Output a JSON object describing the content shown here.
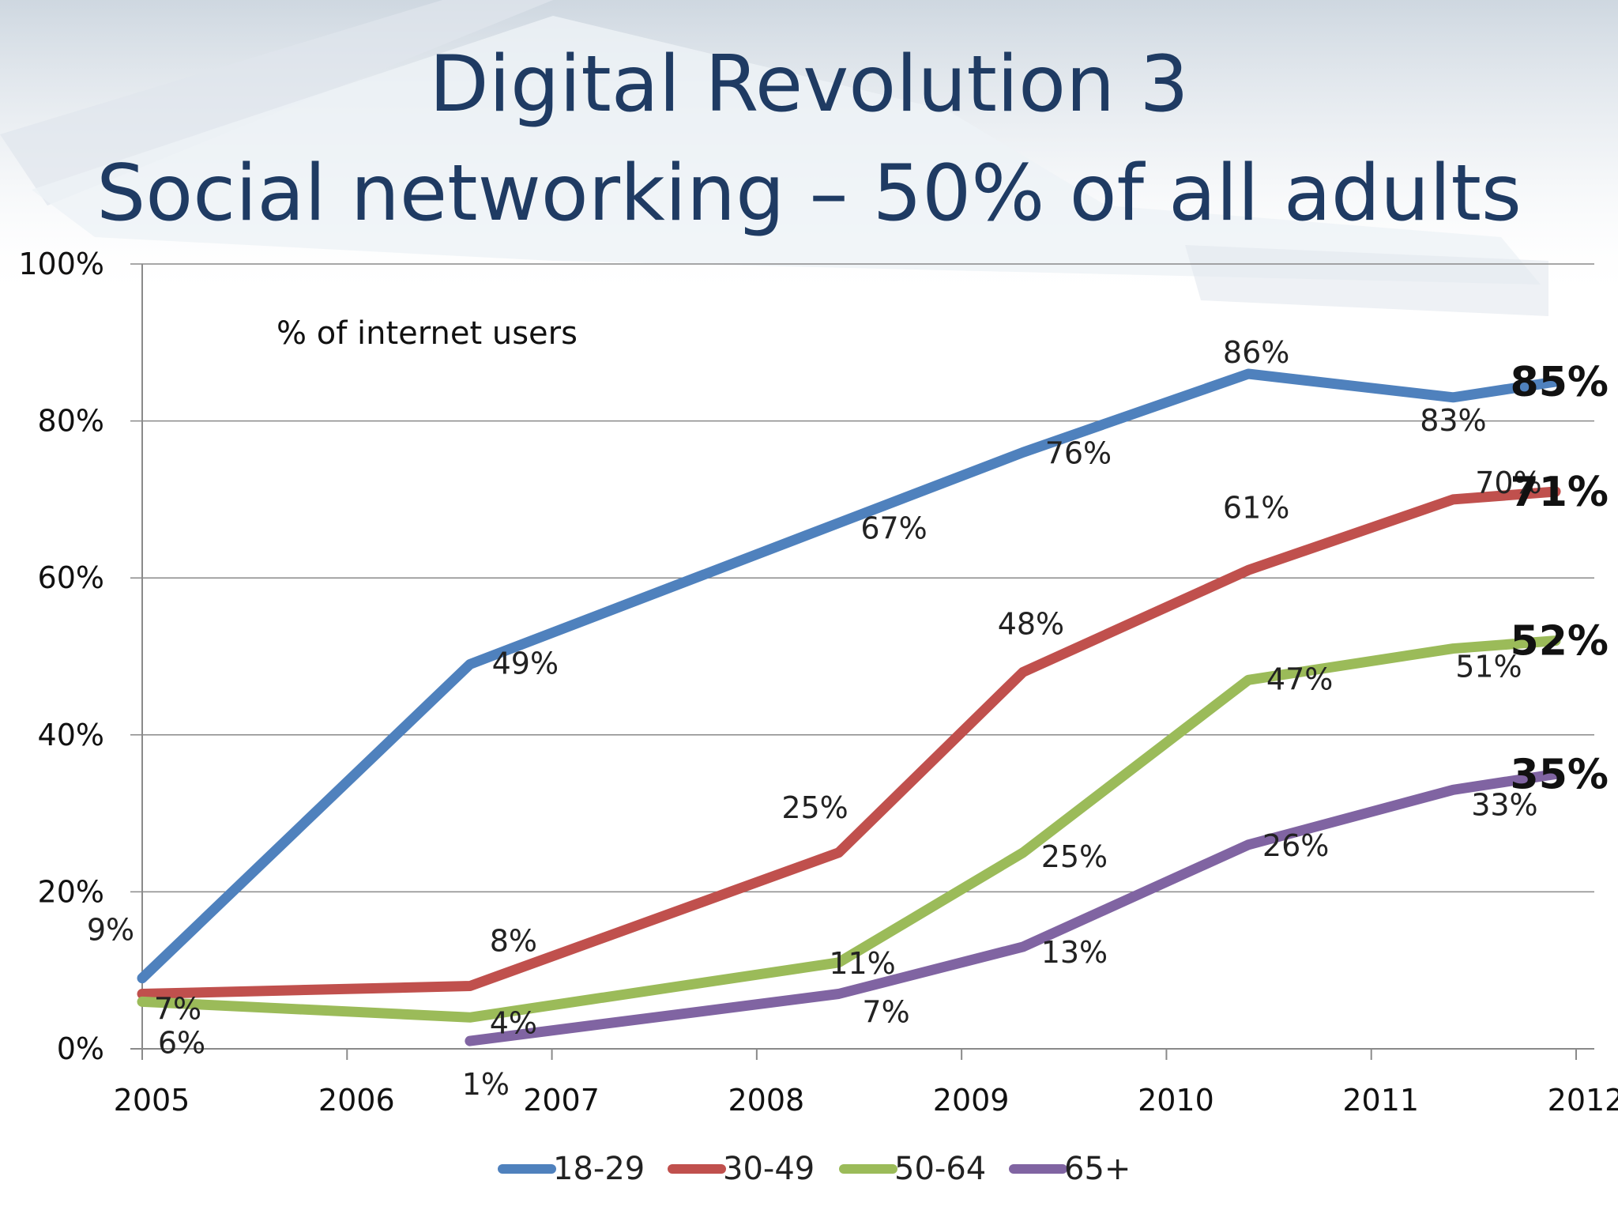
{
  "slide": {
    "title_line1": "Digital Revolution 3",
    "title_line2": "Social networking – 50% of all adults"
  },
  "chart_data": {
    "type": "line",
    "subtitle": "% of internet users",
    "x_ticks": [
      "2005",
      "2006",
      "2007",
      "2008",
      "2009",
      "2010",
      "2011",
      "2012"
    ],
    "y_ticks": [
      "0%",
      "20%",
      "40%",
      "60%",
      "80%",
      "100%"
    ],
    "xlim": [
      2005,
      2012
    ],
    "ylim": [
      0,
      100
    ],
    "grid": true,
    "legend_position": "bottom",
    "series": [
      {
        "name": "18-29",
        "color": "#4f81bd",
        "points": [
          {
            "x": 2005,
            "y": 9,
            "label": "9%"
          },
          {
            "x": 2006.6,
            "y": 49,
            "label": "49%"
          },
          {
            "x": 2008.4,
            "y": 67,
            "label": "67%"
          },
          {
            "x": 2009.3,
            "y": 76,
            "label": "76%"
          },
          {
            "x": 2010.4,
            "y": 86,
            "label": "86%"
          },
          {
            "x": 2011.4,
            "y": 83,
            "label": "83%"
          },
          {
            "x": 2011.9,
            "y": 85,
            "label": "85%"
          }
        ]
      },
      {
        "name": "30-49",
        "color": "#c0504d",
        "points": [
          {
            "x": 2005,
            "y": 7,
            "label": "7%"
          },
          {
            "x": 2006.6,
            "y": 8,
            "label": "8%"
          },
          {
            "x": 2008.4,
            "y": 25,
            "label": "25%"
          },
          {
            "x": 2009.3,
            "y": 48,
            "label": "48%"
          },
          {
            "x": 2010.4,
            "y": 61,
            "label": "61%"
          },
          {
            "x": 2011.4,
            "y": 70,
            "label": "70%"
          },
          {
            "x": 2011.9,
            "y": 71,
            "label": "71%"
          }
        ]
      },
      {
        "name": "50-64",
        "color": "#9bbb59",
        "points": [
          {
            "x": 2005,
            "y": 6,
            "label": "6%"
          },
          {
            "x": 2006.6,
            "y": 4,
            "label": "4%"
          },
          {
            "x": 2008.4,
            "y": 11,
            "label": "11%"
          },
          {
            "x": 2009.3,
            "y": 25,
            "label": "25%"
          },
          {
            "x": 2010.4,
            "y": 47,
            "label": "47%"
          },
          {
            "x": 2011.4,
            "y": 51,
            "label": "51%"
          },
          {
            "x": 2011.9,
            "y": 52,
            "label": "52%"
          }
        ]
      },
      {
        "name": "65+",
        "color": "#8064a2",
        "points": [
          {
            "x": 2006.6,
            "y": 1,
            "label": "1%"
          },
          {
            "x": 2008.4,
            "y": 7,
            "label": "7%"
          },
          {
            "x": 2009.3,
            "y": 13,
            "label": "13%"
          },
          {
            "x": 2010.4,
            "y": 26,
            "label": "26%"
          },
          {
            "x": 2011.4,
            "y": 33,
            "label": "33%"
          },
          {
            "x": 2011.9,
            "y": 35,
            "label": "35%"
          }
        ]
      }
    ]
  }
}
